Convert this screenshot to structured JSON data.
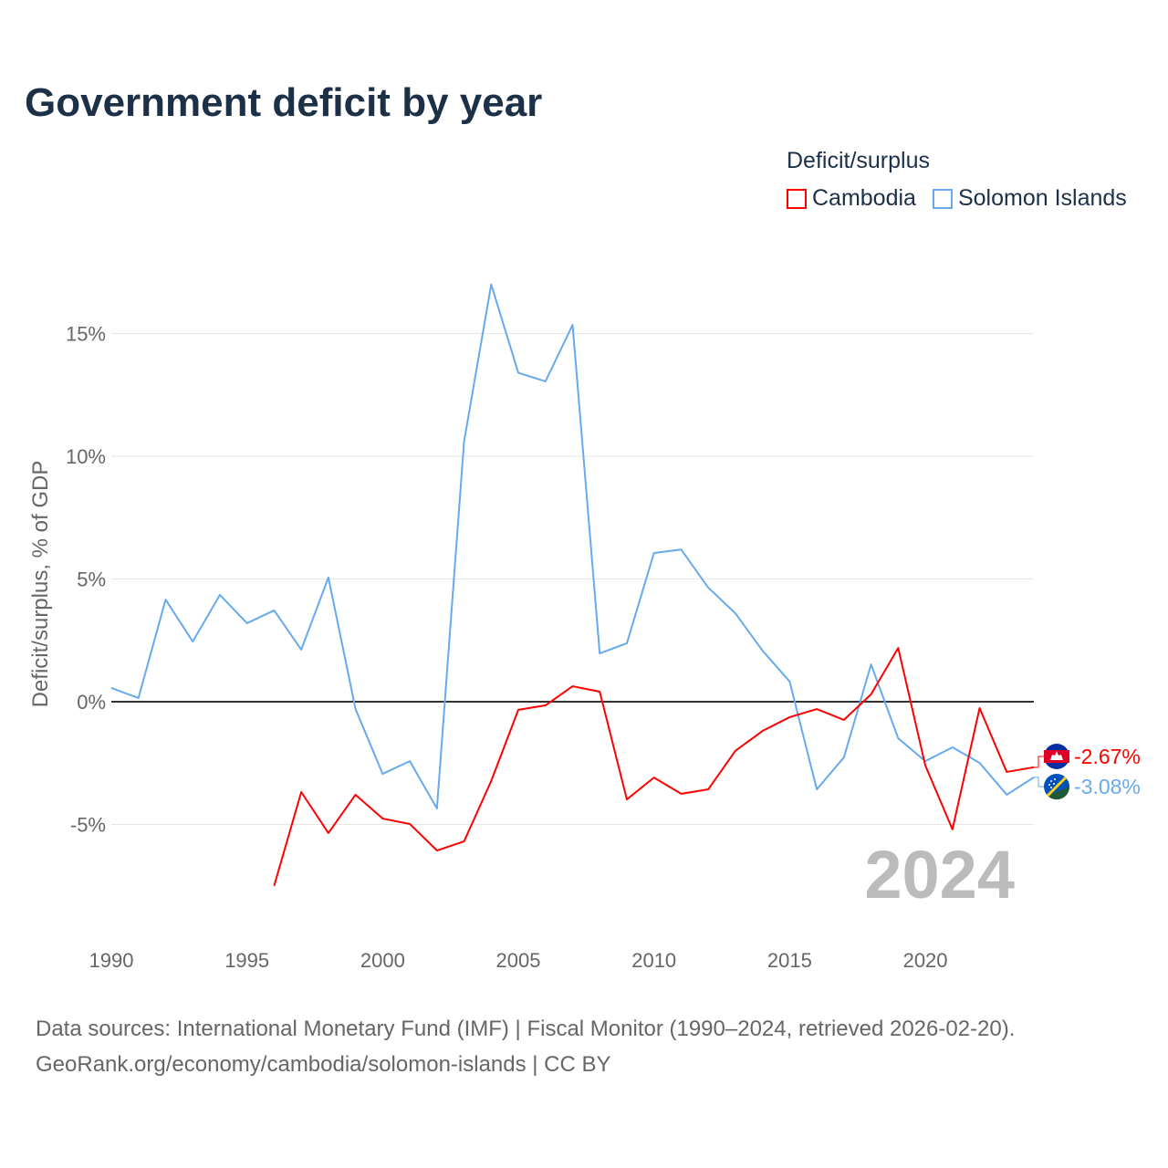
{
  "title": "Government deficit by year",
  "legend": {
    "title": "Deficit/surplus",
    "items": [
      {
        "label": "Cambodia",
        "color": "#ff0000"
      },
      {
        "label": "Solomon Islands",
        "color": "#66aaee"
      }
    ]
  },
  "chart_data": {
    "type": "line",
    "title": "Government deficit by year",
    "ylabel": "Deficit/surplus, % of GDP",
    "xlabel": "",
    "xlim": [
      1990,
      2024
    ],
    "ylim": [
      -8.6,
      18
    ],
    "x_ticks": [
      1990,
      1995,
      2000,
      2005,
      2010,
      2015,
      2020
    ],
    "y_ticks": [
      {
        "value": 15,
        "label": "15%"
      },
      {
        "value": 10,
        "label": "10%"
      },
      {
        "value": 5,
        "label": "5%"
      },
      {
        "value": 0,
        "label": "0%"
      },
      {
        "value": -5,
        "label": "-5%"
      }
    ],
    "grid": true,
    "year_label": "2024",
    "series": [
      {
        "name": "Cambodia",
        "color": "#ff0000",
        "end_label": "-2.67%",
        "x": [
          1996,
          1997,
          1998,
          1999,
          2000,
          2001,
          2002,
          2003,
          2004,
          2005,
          2006,
          2007,
          2008,
          2009,
          2010,
          2011,
          2012,
          2013,
          2014,
          2015,
          2016,
          2017,
          2018,
          2019,
          2020,
          2021,
          2022,
          2023,
          2024
        ],
        "values": [
          -7.5,
          -3.68,
          -5.35,
          -3.79,
          -4.76,
          -4.98,
          -6.06,
          -5.69,
          -3.23,
          -0.33,
          -0.15,
          0.63,
          0.41,
          -3.98,
          -3.09,
          -3.75,
          -3.57,
          -2.0,
          -1.19,
          -0.63,
          -0.3,
          -0.74,
          0.3,
          2.19,
          -2.6,
          -5.2,
          -0.26,
          -2.86,
          -2.67
        ]
      },
      {
        "name": "Solomon Islands",
        "color": "#66aaee",
        "end_label": "-3.08%",
        "x": [
          1990,
          1991,
          1992,
          1993,
          1994,
          1995,
          1996,
          1997,
          1998,
          1999,
          2000,
          2001,
          2002,
          2003,
          2004,
          2005,
          2006,
          2007,
          2008,
          2009,
          2010,
          2011,
          2012,
          2013,
          2014,
          2015,
          2016,
          2017,
          2018,
          2019,
          2020,
          2021,
          2022,
          2023,
          2024
        ],
        "values": [
          0.56,
          0.15,
          4.16,
          2.45,
          4.35,
          3.2,
          3.72,
          2.12,
          5.06,
          -0.3,
          -2.94,
          -2.42,
          -4.35,
          10.6,
          17.0,
          13.4,
          13.05,
          15.35,
          1.97,
          2.38,
          6.06,
          6.2,
          4.65,
          3.6,
          2.08,
          0.82,
          -3.57,
          -2.27,
          1.52,
          -1.49,
          -2.42,
          -1.86,
          -2.49,
          -3.79,
          -3.08
        ]
      }
    ]
  },
  "source": {
    "line1": "Data sources: International Monetary Fund (IMF) | Fiscal Monitor (1990–2024, retrieved 2026-02-20).",
    "line2": "GeoRank.org/economy/cambodia/solomon-islands | CC BY"
  }
}
